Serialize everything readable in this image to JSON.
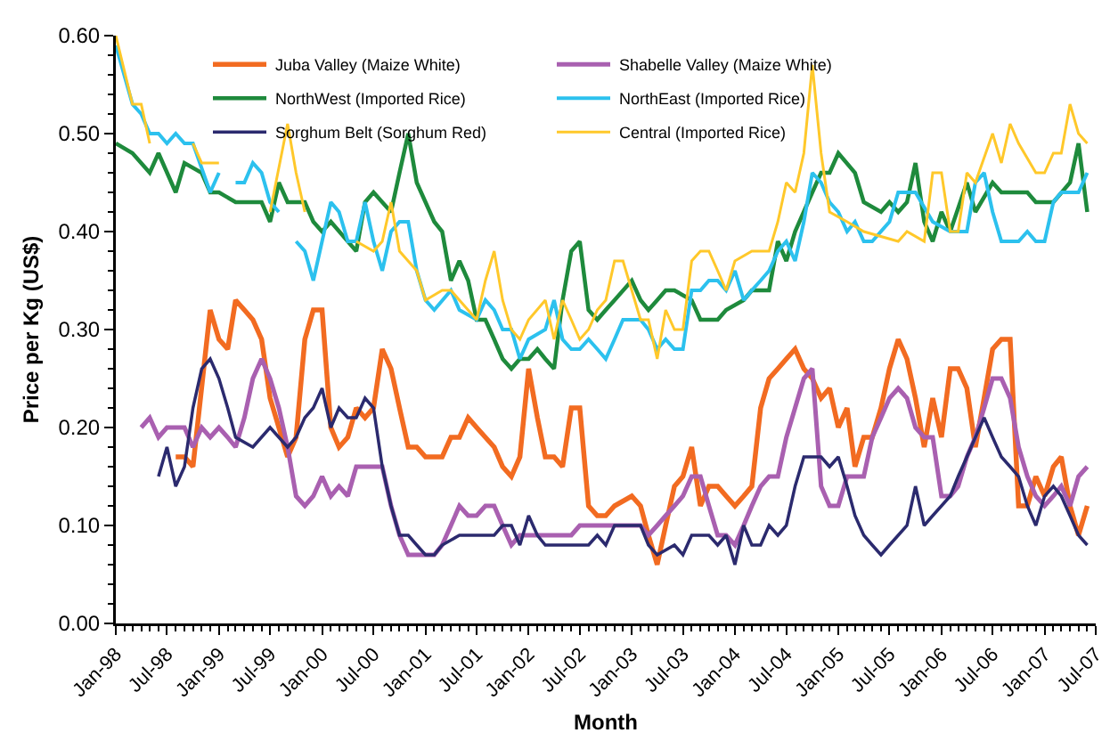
{
  "chart_data": {
    "type": "line",
    "xlabel": "Month",
    "ylabel": "Price per Kg (US$)",
    "xlim": [
      "1998-01",
      "2007-07"
    ],
    "ylim": [
      0,
      0.6
    ],
    "xticks": [
      {
        "value": "1998-01",
        "label": "Jan-98"
      },
      {
        "value": "1998-07",
        "label": "Jul-98"
      },
      {
        "value": "1999-01",
        "label": "Jan-99"
      },
      {
        "value": "1999-07",
        "label": "Jul-99"
      },
      {
        "value": "2000-01",
        "label": "Jan-00"
      },
      {
        "value": "2000-07",
        "label": "Jul-00"
      },
      {
        "value": "2001-01",
        "label": "Jan-01"
      },
      {
        "value": "2001-07",
        "label": "Jul-01"
      },
      {
        "value": "2002-01",
        "label": "Jan-02"
      },
      {
        "value": "2002-07",
        "label": "Jul-02"
      },
      {
        "value": "2003-01",
        "label": "Jan-03"
      },
      {
        "value": "2003-07",
        "label": "Jul-03"
      },
      {
        "value": "2004-01",
        "label": "Jan-04"
      },
      {
        "value": "2004-07",
        "label": "Jul-04"
      },
      {
        "value": "2005-01",
        "label": "Jan-05"
      },
      {
        "value": "2005-07",
        "label": "Jul-05"
      },
      {
        "value": "2006-01",
        "label": "Jan-06"
      },
      {
        "value": "2006-07",
        "label": "Jul-06"
      },
      {
        "value": "2007-01",
        "label": "Jan-07"
      },
      {
        "value": "2007-07",
        "label": "Jul-07"
      }
    ],
    "yticks": [
      {
        "value": 0,
        "label": "0.00"
      },
      {
        "value": 0.1,
        "label": "0.10"
      },
      {
        "value": 0.2,
        "label": "0.20"
      },
      {
        "value": 0.3,
        "label": "0.30"
      },
      {
        "value": 0.4,
        "label": "0.40"
      },
      {
        "value": 0.5,
        "label": "0.50"
      },
      {
        "value": 0.6,
        "label": "0.60"
      }
    ],
    "grid": false,
    "legend": "top",
    "marker": "none",
    "series": [
      {
        "name": "Juba Valley (Maize White)",
        "color": "#f26b21",
        "x": [
          "1998-08",
          "1998-09",
          "1998-10",
          "1998-12",
          "1999-01",
          "1999-02",
          "1999-03",
          "1999-04",
          "1999-05",
          "1999-06",
          "1999-07",
          "1999-08",
          "1999-09",
          "1999-10",
          "1999-11",
          "1999-12",
          "2000-01",
          "2000-02",
          "2000-03",
          "2000-04",
          "2000-05",
          "2000-06",
          "2000-07",
          "2000-08",
          "2000-09",
          "2000-10",
          "2000-11",
          "2000-12",
          "2001-01",
          "2001-03",
          "2001-04",
          "2001-05",
          "2001-06",
          "2001-07",
          "2001-08",
          "2001-09",
          "2001-10",
          "2001-11",
          "2001-12",
          "2002-01",
          "2002-02",
          "2002-03",
          "2002-04",
          "2002-05",
          "2002-06",
          "2002-07",
          "2002-08",
          "2002-09",
          "2002-10",
          "2002-11",
          "2003-01",
          "2003-02",
          "2003-03",
          "2003-04",
          "2003-05",
          "2003-06",
          "2003-07",
          "2003-08",
          "2003-09",
          "2003-10",
          "2003-11",
          "2003-12",
          "2004-01",
          "2004-02",
          "2004-03",
          "2004-04",
          "2004-05",
          "2004-06",
          "2004-07",
          "2004-08",
          "2004-09",
          "2004-10",
          "2004-11",
          "2004-12",
          "2005-01",
          "2005-02",
          "2005-03",
          "2005-04",
          "2005-05",
          "2005-06",
          "2005-07",
          "2005-08",
          "2005-09",
          "2005-10",
          "2005-11",
          "2005-12",
          "2006-01",
          "2006-02",
          "2006-03",
          "2006-04",
          "2006-05",
          "2006-06",
          "2006-07",
          "2006-08",
          "2006-09",
          "2006-10",
          "2006-11",
          "2006-12",
          "2007-01",
          "2007-02",
          "2007-03",
          "2007-04",
          "2007-05",
          "2007-06"
        ],
        "values": [
          0.17,
          0.17,
          0.16,
          0.32,
          0.29,
          0.28,
          0.33,
          0.32,
          0.31,
          0.29,
          0.23,
          0.2,
          0.17,
          0.19,
          0.29,
          0.32,
          0.32,
          0.2,
          0.18,
          0.19,
          0.22,
          0.21,
          0.22,
          0.28,
          0.26,
          0.22,
          0.18,
          0.18,
          0.17,
          0.17,
          0.19,
          0.19,
          0.21,
          0.2,
          0.19,
          0.18,
          0.16,
          0.15,
          0.17,
          0.26,
          0.21,
          0.17,
          0.17,
          0.16,
          0.22,
          0.22,
          0.12,
          0.11,
          0.11,
          0.12,
          0.13,
          0.12,
          0.09,
          0.06,
          0.1,
          0.14,
          0.15,
          0.18,
          0.12,
          0.14,
          0.14,
          0.13,
          0.12,
          0.13,
          0.14,
          0.22,
          0.25,
          0.26,
          0.27,
          0.28,
          0.26,
          0.25,
          0.23,
          0.24,
          0.2,
          0.22,
          0.16,
          0.19,
          0.19,
          0.22,
          0.26,
          0.29,
          0.27,
          0.23,
          0.18,
          0.23,
          0.19,
          0.26,
          0.26,
          0.24,
          0.18,
          0.23,
          0.28,
          0.29,
          0.29,
          0.12,
          0.12,
          0.15,
          0.13,
          0.16,
          0.17,
          0.12,
          0.09,
          0.12
        ]
      },
      {
        "name": "Shabelle Valley (Maize White)",
        "color": "#a960b0",
        "x": [
          "1998-04",
          "1998-05",
          "1998-06",
          "1998-07",
          "1998-09",
          "1998-10",
          "1998-11",
          "1998-12",
          "1999-01",
          "1999-02",
          "1999-03",
          "1999-04",
          "1999-05",
          "1999-06",
          "1999-07",
          "1999-08",
          "1999-09",
          "1999-10",
          "1999-11",
          "1999-12",
          "2000-01",
          "2000-02",
          "2000-03",
          "2000-04",
          "2000-05",
          "2000-06",
          "2000-07",
          "2000-08",
          "2000-09",
          "2000-10",
          "2000-11",
          "2000-12",
          "2001-01",
          "2001-02",
          "2001-03",
          "2001-04",
          "2001-05",
          "2001-06",
          "2001-07",
          "2001-08",
          "2001-09",
          "2001-10",
          "2001-11",
          "2001-12",
          "2002-02",
          "2002-04",
          "2002-06",
          "2002-07",
          "2002-08",
          "2002-10",
          "2002-12",
          "2003-02",
          "2003-03",
          "2003-04",
          "2003-05",
          "2003-06",
          "2003-07",
          "2003-08",
          "2003-09",
          "2003-10",
          "2003-11",
          "2003-12",
          "2004-01",
          "2004-02",
          "2004-03",
          "2004-04",
          "2004-05",
          "2004-06",
          "2004-07",
          "2004-08",
          "2004-09",
          "2004-10",
          "2004-11",
          "2004-12",
          "2005-01",
          "2005-02",
          "2005-03",
          "2005-04",
          "2005-05",
          "2005-06",
          "2005-07",
          "2005-08",
          "2005-09",
          "2005-10",
          "2005-11",
          "2005-12",
          "2006-01",
          "2006-02",
          "2006-03",
          "2006-04",
          "2006-05",
          "2006-06",
          "2006-07",
          "2006-08",
          "2006-09",
          "2006-10",
          "2006-11",
          "2006-12",
          "2007-01",
          "2007-02",
          "2007-03",
          "2007-04",
          "2007-05",
          "2007-06"
        ],
        "values": [
          0.2,
          0.21,
          0.19,
          0.2,
          0.2,
          0.18,
          0.2,
          0.19,
          0.2,
          0.19,
          0.18,
          0.21,
          0.25,
          0.27,
          0.25,
          0.22,
          0.18,
          0.13,
          0.12,
          0.13,
          0.15,
          0.13,
          0.14,
          0.13,
          0.16,
          0.16,
          0.16,
          0.16,
          0.12,
          0.09,
          0.07,
          0.07,
          0.07,
          0.07,
          0.08,
          0.1,
          0.12,
          0.11,
          0.11,
          0.12,
          0.12,
          0.1,
          0.08,
          0.09,
          0.09,
          0.09,
          0.09,
          0.1,
          0.1,
          0.1,
          0.1,
          0.1,
          0.09,
          0.1,
          0.11,
          0.12,
          0.13,
          0.15,
          0.15,
          0.12,
          0.09,
          0.09,
          0.08,
          0.1,
          0.12,
          0.14,
          0.15,
          0.15,
          0.19,
          0.22,
          0.25,
          0.26,
          0.14,
          0.12,
          0.12,
          0.15,
          0.15,
          0.15,
          0.19,
          0.21,
          0.23,
          0.24,
          0.23,
          0.2,
          0.19,
          0.19,
          0.13,
          0.13,
          0.14,
          0.17,
          0.19,
          0.22,
          0.25,
          0.25,
          0.23,
          0.18,
          0.15,
          0.13,
          0.12,
          0.13,
          0.14,
          0.12,
          0.15,
          0.16
        ]
      },
      {
        "name": "NorthWest (Imported Rice)",
        "color": "#1e8a3c",
        "x": [
          "1998-01",
          "1998-03",
          "1998-05",
          "1998-06",
          "1998-08",
          "1998-09",
          "1998-11",
          "1998-12",
          "1999-01",
          "1999-03",
          "1999-05",
          "1999-06",
          "1999-07",
          "1999-08",
          "1999-09",
          "1999-10",
          "1999-11",
          "1999-12",
          "2000-01",
          "2000-02",
          "2000-04",
          "2000-05",
          "2000-06",
          "2000-07",
          "2000-08",
          "2000-09",
          "2000-10",
          "2000-11",
          "2000-12",
          "2001-01",
          "2001-02",
          "2001-03",
          "2001-04",
          "2001-05",
          "2001-06",
          "2001-07",
          "2001-08",
          "2001-09",
          "2001-10",
          "2001-11",
          "2001-12",
          "2002-01",
          "2002-02",
          "2002-03",
          "2002-04",
          "2002-05",
          "2002-06",
          "2002-07",
          "2002-08",
          "2002-09",
          "2002-10",
          "2002-11",
          "2003-01",
          "2003-02",
          "2003-03",
          "2003-04",
          "2003-05",
          "2003-06",
          "2003-08",
          "2003-09",
          "2003-11",
          "2003-12",
          "2004-02",
          "2004-03",
          "2004-05",
          "2004-06",
          "2004-07",
          "2004-08",
          "2004-10",
          "2004-11",
          "2004-12",
          "2005-01",
          "2005-03",
          "2005-04",
          "2005-06",
          "2005-07",
          "2005-08",
          "2005-09",
          "2005-10",
          "2005-11",
          "2005-12",
          "2006-01",
          "2006-02",
          "2006-04",
          "2006-05",
          "2006-07",
          "2006-08",
          "2006-09",
          "2006-11",
          "2006-12",
          "2007-02",
          "2007-04",
          "2007-05",
          "2007-06"
        ],
        "values": [
          0.49,
          0.48,
          0.46,
          0.48,
          0.44,
          0.47,
          0.46,
          0.44,
          0.44,
          0.43,
          0.43,
          0.43,
          0.41,
          0.45,
          0.43,
          0.43,
          0.43,
          0.41,
          0.4,
          0.41,
          0.39,
          0.38,
          0.43,
          0.44,
          0.43,
          0.42,
          0.46,
          0.5,
          0.45,
          0.43,
          0.41,
          0.4,
          0.35,
          0.37,
          0.35,
          0.31,
          0.31,
          0.29,
          0.27,
          0.26,
          0.27,
          0.27,
          0.28,
          0.27,
          0.26,
          0.33,
          0.38,
          0.39,
          0.32,
          0.31,
          0.32,
          0.33,
          0.35,
          0.33,
          0.32,
          0.33,
          0.34,
          0.34,
          0.33,
          0.31,
          0.31,
          0.32,
          0.33,
          0.34,
          0.34,
          0.39,
          0.37,
          0.4,
          0.44,
          0.46,
          0.46,
          0.48,
          0.46,
          0.43,
          0.42,
          0.43,
          0.42,
          0.43,
          0.47,
          0.41,
          0.39,
          0.42,
          0.4,
          0.45,
          0.42,
          0.45,
          0.44,
          0.44,
          0.44,
          0.43,
          0.43,
          0.45,
          0.49,
          0.42
        ]
      },
      {
        "name": "NorthEast (Imported Rice)",
        "color": "#2cc1ee",
        "x": [
          "1998-01",
          "1998-03",
          "1998-04",
          "1998-05",
          "1998-06",
          "1998-07",
          "1998-08",
          "1998-09",
          "1998-10",
          "1998-12",
          "1999-01",
          "1999-02",
          "1999-03",
          "1999-04",
          "1999-05",
          "1999-06",
          "1999-07",
          "1999-08",
          "1999-09",
          "1999-10",
          "1999-11",
          "1999-12",
          "2000-01",
          "2000-02",
          "2000-03",
          "2000-04",
          "2000-05",
          "2000-06",
          "2000-07",
          "2000-08",
          "2000-09",
          "2000-10",
          "2000-11",
          "2000-12",
          "2001-01",
          "2001-02",
          "2001-04",
          "2001-05",
          "2001-07",
          "2001-08",
          "2001-09",
          "2001-10",
          "2001-11",
          "2001-12",
          "2002-01",
          "2002-03",
          "2002-04",
          "2002-05",
          "2002-06",
          "2002-07",
          "2002-08",
          "2002-09",
          "2002-10",
          "2002-11",
          "2002-12",
          "2003-01",
          "2003-02",
          "2003-03",
          "2003-04",
          "2003-05",
          "2003-06",
          "2003-07",
          "2003-08",
          "2003-09",
          "2003-10",
          "2003-11",
          "2003-12",
          "2004-01",
          "2004-02",
          "2004-03",
          "2004-04",
          "2004-05",
          "2004-06",
          "2004-07",
          "2004-08",
          "2004-09",
          "2004-10",
          "2004-11",
          "2004-12",
          "2005-01",
          "2005-02",
          "2005-03",
          "2005-04",
          "2005-05",
          "2005-07",
          "2005-08",
          "2005-10",
          "2005-12",
          "2006-02",
          "2006-04",
          "2006-05",
          "2006-06",
          "2006-07",
          "2006-08",
          "2006-09",
          "2006-10",
          "2006-11",
          "2006-12",
          "2007-01",
          "2007-02",
          "2007-03",
          "2007-04",
          "2007-05",
          "2007-06"
        ],
        "values": [
          0.59,
          0.53,
          0.52,
          0.5,
          0.5,
          0.49,
          0.5,
          0.49,
          0.49,
          0.44,
          0.46,
          null,
          0.45,
          0.45,
          0.47,
          0.46,
          0.43,
          0.42,
          null,
          0.39,
          0.38,
          0.35,
          0.39,
          0.43,
          0.42,
          0.39,
          0.39,
          0.43,
          0.39,
          0.36,
          0.4,
          0.41,
          0.41,
          0.36,
          0.33,
          0.32,
          0.34,
          0.32,
          0.31,
          0.33,
          0.32,
          0.3,
          0.3,
          0.27,
          0.29,
          0.3,
          0.33,
          0.29,
          0.28,
          0.28,
          0.29,
          0.28,
          0.27,
          0.29,
          0.31,
          0.31,
          0.31,
          0.3,
          0.28,
          0.29,
          0.28,
          0.28,
          0.34,
          0.34,
          0.35,
          0.35,
          0.34,
          0.36,
          0.33,
          0.34,
          0.35,
          0.36,
          0.38,
          0.39,
          0.37,
          0.41,
          0.46,
          0.45,
          0.43,
          0.42,
          0.4,
          0.41,
          0.39,
          0.39,
          0.41,
          0.44,
          0.44,
          0.41,
          0.4,
          0.4,
          0.45,
          0.46,
          0.42,
          0.39,
          0.39,
          0.39,
          0.4,
          0.39,
          0.39,
          0.43,
          0.44,
          0.44,
          0.44,
          0.46
        ]
      },
      {
        "name": "Sorghum Belt (Sorghum Red)",
        "color": "#2b2a6e",
        "x": [
          "1998-06",
          "1998-07",
          "1998-08",
          "1998-09",
          "1998-10",
          "1998-11",
          "1998-12",
          "1999-01",
          "1999-02",
          "1999-03",
          "1999-05",
          "1999-07",
          "1999-08",
          "1999-09",
          "1999-10",
          "1999-11",
          "1999-12",
          "2000-01",
          "2000-02",
          "2000-03",
          "2000-04",
          "2000-05",
          "2000-06",
          "2000-07",
          "2000-08",
          "2000-09",
          "2000-10",
          "2000-11",
          "2000-12",
          "2001-01",
          "2001-02",
          "2001-03",
          "2001-05",
          "2001-07",
          "2001-09",
          "2001-10",
          "2001-11",
          "2001-12",
          "2002-01",
          "2002-02",
          "2002-03",
          "2002-04",
          "2002-05",
          "2002-06",
          "2002-08",
          "2002-09",
          "2002-10",
          "2002-11",
          "2003-01",
          "2003-02",
          "2003-03",
          "2003-04",
          "2003-06",
          "2003-07",
          "2003-08",
          "2003-09",
          "2003-10",
          "2003-11",
          "2003-12",
          "2004-01",
          "2004-02",
          "2004-03",
          "2004-04",
          "2004-05",
          "2004-06",
          "2004-07",
          "2004-08",
          "2004-09",
          "2004-10",
          "2004-11",
          "2004-12",
          "2005-01",
          "2005-02",
          "2005-03",
          "2005-04",
          "2005-05",
          "2005-06",
          "2005-07",
          "2005-08",
          "2005-09",
          "2005-10",
          "2005-11",
          "2005-12",
          "2006-01",
          "2006-02",
          "2006-03",
          "2006-04",
          "2006-05",
          "2006-06",
          "2006-07",
          "2006-08",
          "2006-09",
          "2006-10",
          "2006-11",
          "2006-12",
          "2007-01",
          "2007-02",
          "2007-03",
          "2007-04",
          "2007-05",
          "2007-06"
        ],
        "values": [
          0.15,
          0.18,
          0.14,
          0.16,
          0.22,
          0.26,
          0.27,
          0.25,
          0.22,
          0.19,
          0.18,
          0.2,
          0.19,
          0.18,
          0.19,
          0.21,
          0.22,
          0.24,
          0.2,
          0.22,
          0.21,
          0.21,
          0.23,
          0.22,
          0.16,
          0.12,
          0.09,
          0.09,
          0.08,
          0.07,
          0.07,
          0.08,
          0.09,
          0.09,
          0.09,
          0.1,
          0.1,
          0.08,
          0.11,
          0.09,
          0.08,
          0.08,
          0.08,
          0.08,
          0.08,
          0.09,
          0.08,
          0.1,
          0.1,
          0.1,
          0.08,
          0.07,
          0.08,
          0.07,
          0.09,
          0.09,
          0.09,
          0.08,
          0.09,
          0.06,
          0.1,
          0.08,
          0.08,
          0.1,
          0.09,
          0.1,
          0.14,
          0.17,
          0.17,
          0.17,
          0.16,
          0.17,
          0.14,
          0.11,
          0.09,
          0.08,
          0.07,
          0.08,
          0.09,
          0.1,
          0.14,
          0.1,
          0.11,
          0.12,
          0.13,
          0.15,
          0.17,
          0.19,
          0.21,
          0.19,
          0.17,
          0.16,
          0.15,
          0.12,
          0.1,
          0.13,
          0.14,
          0.13,
          0.11,
          0.09,
          0.08
        ]
      },
      {
        "name": "Central (Imported Rice)",
        "color": "#ffc82a",
        "x": [
          "1998-01",
          "1998-03",
          "1998-04",
          "1998-05",
          "1998-07",
          "1998-10",
          "1998-11",
          "1999-01",
          "1999-04",
          "1999-07",
          "1999-09",
          "1999-10",
          "1999-11",
          "2000-02",
          "2000-05",
          "2000-07",
          "2000-08",
          "2000-09",
          "2000-10",
          "2000-12",
          "2001-01",
          "2001-03",
          "2001-04",
          "2001-05",
          "2001-07",
          "2001-08",
          "2001-09",
          "2001-10",
          "2001-11",
          "2001-12",
          "2002-01",
          "2002-03",
          "2002-04",
          "2002-05",
          "2002-06",
          "2002-07",
          "2002-08",
          "2002-09",
          "2002-10",
          "2002-11",
          "2002-12",
          "2003-02",
          "2003-03",
          "2003-04",
          "2003-05",
          "2003-06",
          "2003-07",
          "2003-08",
          "2003-09",
          "2003-10",
          "2003-11",
          "2003-12",
          "2004-01",
          "2004-03",
          "2004-05",
          "2004-06",
          "2004-07",
          "2004-08",
          "2004-09",
          "2004-10",
          "2004-11",
          "2004-12",
          "2005-02",
          "2005-04",
          "2005-08",
          "2005-09",
          "2005-11",
          "2005-12",
          "2006-01",
          "2006-02",
          "2006-03",
          "2006-04",
          "2006-05",
          "2006-07",
          "2006-08",
          "2006-09",
          "2006-10",
          "2006-12",
          "2007-01",
          "2007-02",
          "2007-03",
          "2007-04",
          "2007-05",
          "2007-06"
        ],
        "values": [
          0.6,
          0.53,
          0.53,
          0.49,
          null,
          0.49,
          0.47,
          0.47,
          null,
          0.42,
          0.51,
          0.46,
          0.42,
          null,
          0.39,
          0.38,
          0.39,
          0.43,
          0.38,
          0.36,
          0.33,
          0.34,
          0.34,
          0.33,
          0.31,
          0.35,
          0.38,
          0.33,
          0.3,
          0.29,
          0.31,
          0.33,
          0.29,
          0.33,
          0.31,
          0.29,
          0.3,
          0.32,
          0.33,
          0.37,
          0.37,
          0.31,
          0.31,
          0.27,
          0.32,
          0.3,
          0.3,
          0.37,
          0.38,
          0.38,
          0.36,
          0.34,
          0.37,
          0.38,
          0.38,
          0.41,
          0.45,
          0.44,
          0.48,
          0.57,
          0.48,
          0.42,
          0.41,
          0.4,
          0.39,
          0.4,
          0.39,
          0.46,
          0.46,
          0.4,
          0.4,
          0.46,
          0.45,
          0.5,
          0.47,
          0.51,
          0.49,
          0.46,
          0.46,
          0.48,
          0.48,
          0.53,
          0.5,
          0.49
        ]
      }
    ]
  }
}
